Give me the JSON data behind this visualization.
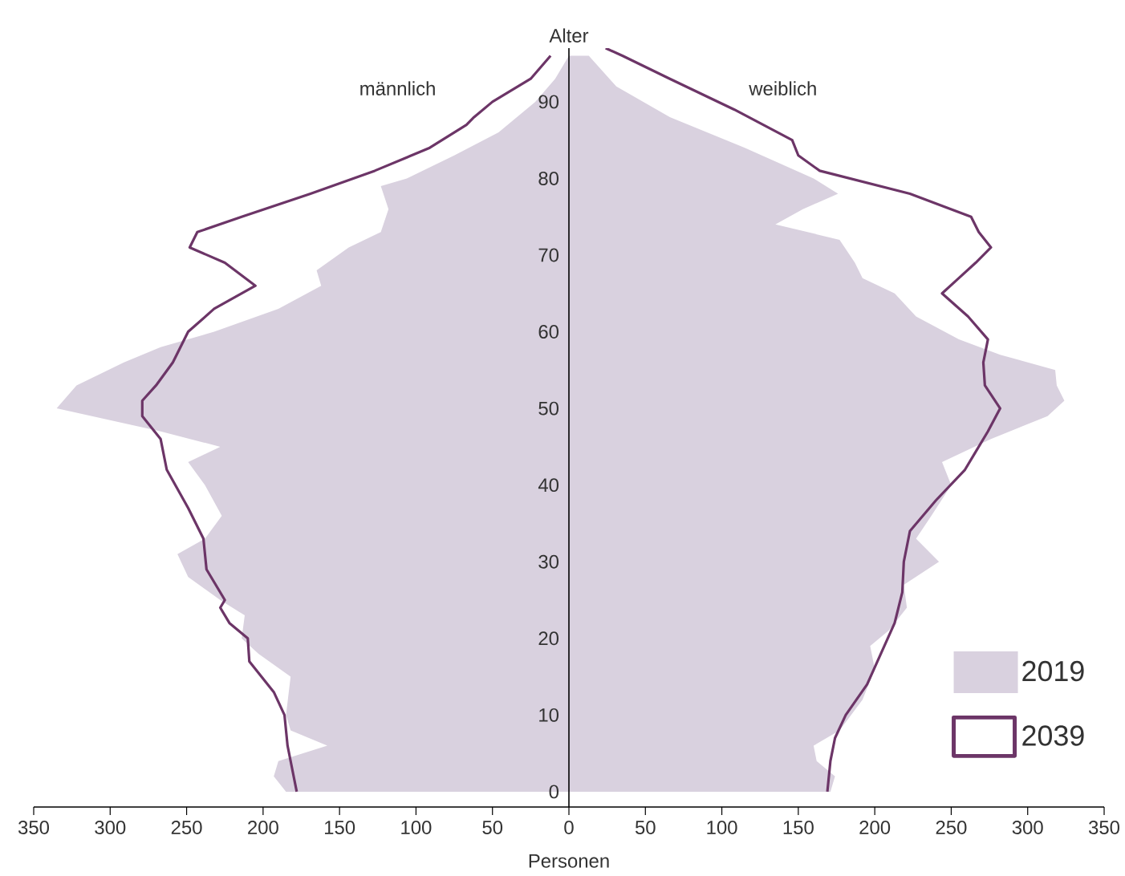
{
  "chart_data": {
    "type": "area",
    "orientation": "horizontal",
    "xlabel": "Personen",
    "ylabel": "Alter",
    "annotations": [
      "männlich",
      "weiblich"
    ],
    "xlim": [
      -350,
      350
    ],
    "ylim": [
      -2,
      97
    ],
    "xticks": [
      {
        "value": -350,
        "label": "350"
      },
      {
        "value": -300,
        "label": "300"
      },
      {
        "value": -250,
        "label": "250"
      },
      {
        "value": -200,
        "label": "200"
      },
      {
        "value": -150,
        "label": "150"
      },
      {
        "value": -100,
        "label": "100"
      },
      {
        "value": -50,
        "label": "50"
      },
      0,
      50,
      100,
      150,
      200,
      250,
      300,
      350
    ],
    "yticks": [
      0,
      10,
      20,
      30,
      40,
      50,
      60,
      70,
      80,
      90
    ],
    "legend": "bottom right",
    "series": [
      {
        "name": "2019",
        "color": "#d9d1df",
        "x": [
          0,
          2,
          4,
          6,
          8,
          10,
          15,
          18,
          20,
          23,
          25,
          28,
          31,
          33,
          36,
          40,
          43,
          45,
          47,
          50,
          53,
          56,
          58,
          60,
          63,
          66,
          68,
          71,
          73,
          76,
          79,
          80,
          83,
          86,
          90,
          93,
          96
        ],
        "values": [
          -185,
          -193,
          -190,
          -158,
          -182,
          -185,
          -182,
          -203,
          -214,
          -212,
          -228,
          -249,
          -256,
          -238,
          -227,
          -238,
          -249,
          -228,
          -267,
          -335,
          -322,
          -291,
          -267,
          -232,
          -190,
          -162,
          -165,
          -144,
          -123,
          -118,
          -123,
          -106,
          -75,
          -46,
          -22,
          -9,
          0
        ]
      },
      {
        "color": "#d9d1df",
        "x": [
          0,
          2,
          4,
          6,
          8,
          12,
          16,
          19,
          21,
          24,
          27,
          30,
          33,
          36,
          40,
          43,
          46,
          49,
          51,
          53,
          55,
          57,
          59,
          62,
          65,
          67,
          69,
          72,
          74,
          76,
          78,
          80,
          84,
          88,
          92,
          96
        ],
        "values": [
          171,
          174,
          162,
          160,
          177,
          192,
          200,
          197,
          209,
          221,
          219,
          242,
          227,
          237,
          250,
          244,
          276,
          313,
          324,
          319,
          318,
          282,
          255,
          227,
          213,
          192,
          187,
          177,
          135,
          153,
          176,
          160,
          115,
          66,
          31,
          13
        ]
      },
      {
        "name": "2039",
        "type": "line",
        "color": "#6c3567",
        "x": [
          0,
          3,
          6,
          10,
          13,
          17,
          20,
          22,
          24,
          25,
          29,
          33,
          37,
          42,
          46,
          49,
          51,
          53,
          56,
          60,
          63,
          66,
          69,
          71,
          73,
          75,
          78,
          81,
          84,
          87,
          88,
          90,
          93,
          96
        ],
        "values": [
          -178,
          -181,
          -184,
          -186,
          -193,
          -209,
          -210,
          -222,
          -228,
          -225,
          -237,
          -239,
          -249,
          -263,
          -267,
          -279,
          -279,
          -270,
          -259,
          -249,
          -232,
          -205,
          -225,
          -248,
          -243,
          -214,
          -169,
          -127,
          -91,
          -67,
          -62,
          -50,
          -25,
          -12
        ]
      },
      {
        "type": "line",
        "color": "#6c3567",
        "x": [
          0,
          4,
          7,
          10,
          14,
          18,
          22,
          26,
          30,
          34,
          38,
          42,
          44,
          47,
          50,
          53,
          56,
          59,
          62,
          65,
          67,
          69,
          71,
          73,
          75,
          78,
          81,
          83,
          85,
          89,
          93,
          96,
          97
        ],
        "values": [
          169,
          171,
          174,
          181,
          195,
          204,
          213,
          218,
          219,
          223,
          240,
          259,
          265,
          274,
          282,
          272,
          271,
          274,
          261,
          244,
          255,
          266,
          276,
          268,
          263,
          223,
          164,
          150,
          146,
          108,
          66,
          35,
          24
        ]
      }
    ]
  }
}
